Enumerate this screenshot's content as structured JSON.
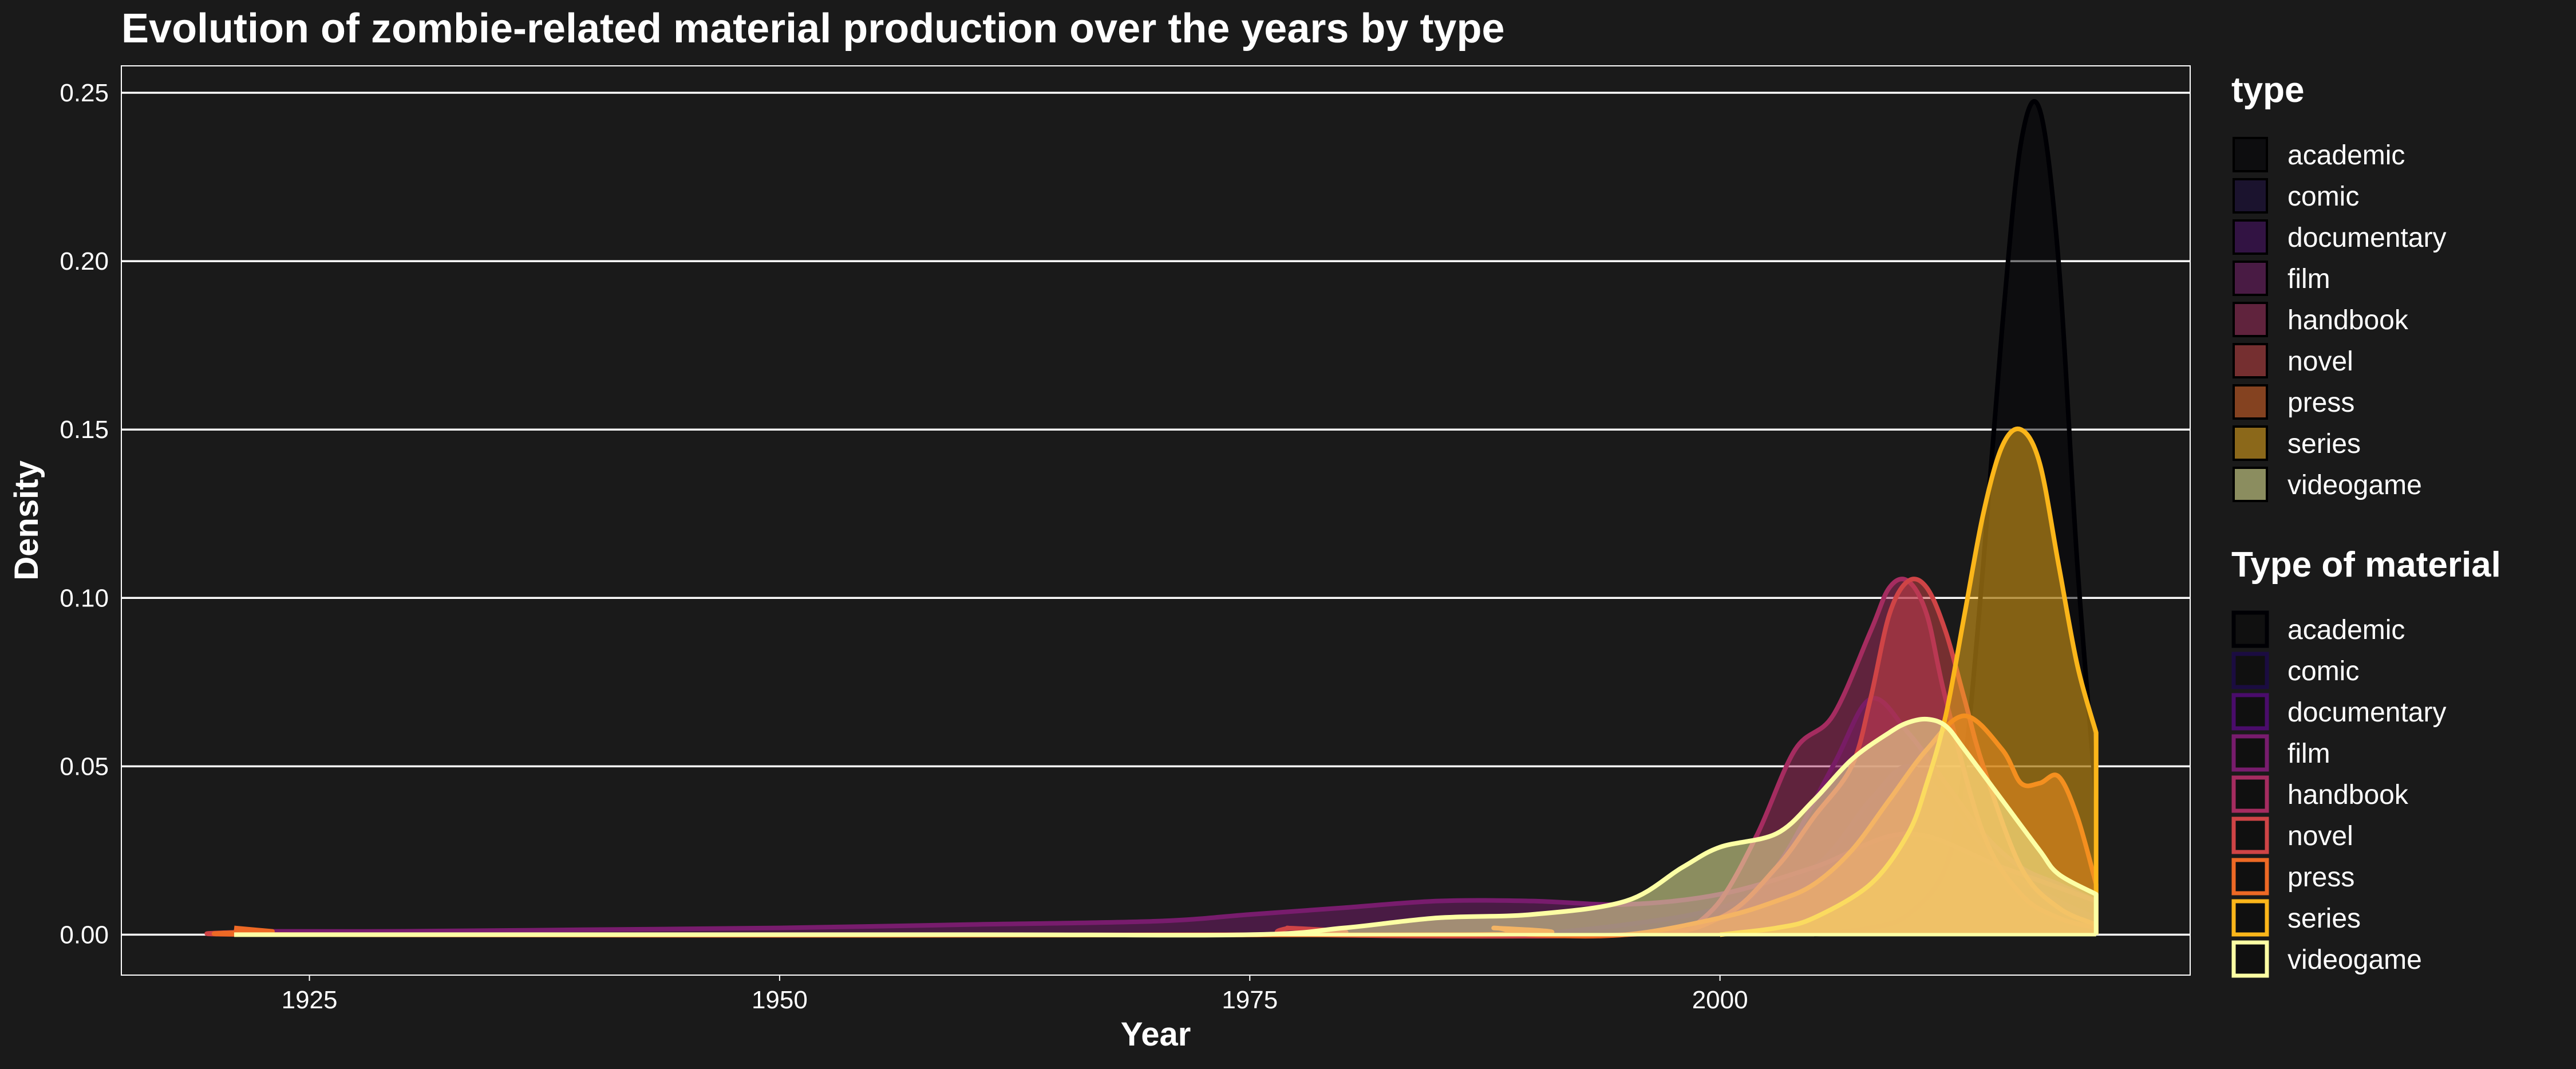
{
  "chart_data": {
    "type": "area",
    "title": "Evolution of zombie-related material production over the years by type",
    "xlabel": "Year",
    "ylabel": "Density",
    "xlim": [
      1915,
      2025
    ],
    "ylim": [
      -0.012,
      0.258
    ],
    "xticks": [
      1925,
      1950,
      1975,
      2000
    ],
    "yticks": [
      0.0,
      0.05,
      0.1,
      0.15,
      0.2,
      0.25
    ],
    "grid": "horizontal",
    "legends": [
      {
        "title": "type",
        "labels": [
          "academic",
          "comic",
          "documentary",
          "film",
          "handbook",
          "novel",
          "press",
          "series",
          "videogame"
        ]
      },
      {
        "title": "Type of material",
        "labels": [
          "academic",
          "comic",
          "documentary",
          "film",
          "handbook",
          "novel",
          "press",
          "series",
          "videogame"
        ]
      }
    ],
    "colors": {
      "background": "#1a1a1a",
      "grid": "#ffffff",
      "academic": "#000004",
      "comic": "#1b0c41",
      "documentary": "#4a0c6b",
      "film": "#781c6d",
      "handbook": "#a52c60",
      "novel": "#cf4446",
      "press": "#ed6925",
      "series": "#fbb61a",
      "videogame": "#fcffa4"
    },
    "series": [
      {
        "name": "academic",
        "x": [
          2005,
          2008,
          2010,
          2012,
          2013,
          2014,
          2015,
          2016,
          2017,
          2018,
          2019,
          2020
        ],
        "y": [
          0,
          0.002,
          0.006,
          0.02,
          0.05,
          0.11,
          0.18,
          0.235,
          0.245,
          0.2,
          0.11,
          0.04
        ]
      },
      {
        "name": "comic",
        "x": [
          1990,
          1995,
          2000,
          2005,
          2008,
          2010,
          2012,
          2015,
          2018,
          2020
        ],
        "y": [
          0,
          0.003,
          0.008,
          0.02,
          0.04,
          0.05,
          0.04,
          0.02,
          0.01,
          0.005
        ]
      },
      {
        "name": "documentary",
        "x": [
          1995,
          2000,
          2003,
          2006,
          2008,
          2010,
          2012,
          2014,
          2016,
          2018,
          2020
        ],
        "y": [
          0,
          0.005,
          0.02,
          0.05,
          0.07,
          0.06,
          0.045,
          0.03,
          0.02,
          0.015,
          0.01
        ]
      },
      {
        "name": "film",
        "x": [
          1921,
          1930,
          1940,
          1950,
          1960,
          1970,
          1975,
          1980,
          1985,
          1990,
          1995,
          2000,
          2005,
          2010,
          2015,
          2020
        ],
        "y": [
          0.001,
          0.001,
          0.0015,
          0.002,
          0.003,
          0.004,
          0.006,
          0.008,
          0.01,
          0.01,
          0.009,
          0.012,
          0.02,
          0.03,
          0.02,
          0.01
        ]
      },
      {
        "name": "handbook",
        "x": [
          1998,
          2000,
          2002,
          2004,
          2006,
          2008,
          2009,
          2010,
          2011,
          2012,
          2014,
          2016,
          2018,
          2020
        ],
        "y": [
          0,
          0.01,
          0.03,
          0.055,
          0.065,
          0.09,
          0.103,
          0.105,
          0.095,
          0.07,
          0.03,
          0.012,
          0.005,
          0.002
        ]
      },
      {
        "name": "novel",
        "x": [
          1921,
          1922,
          1924,
          1976,
          1977,
          1978,
          1995,
          2000,
          2003,
          2005,
          2007,
          2008,
          2009,
          2010,
          2011,
          2012,
          2013,
          2014,
          2016,
          2018,
          2020
        ],
        "y": [
          0.002,
          0.001,
          0,
          0,
          0.002,
          0,
          0,
          0.005,
          0.02,
          0.035,
          0.05,
          0.07,
          0.095,
          0.105,
          0.103,
          0.09,
          0.07,
          0.05,
          0.02,
          0.008,
          0.003
        ]
      },
      {
        "name": "press",
        "x": [
          1921,
          1923,
          1925,
          1986,
          1988,
          1990,
          1995,
          2000,
          2003,
          2005,
          2007,
          2009,
          2011,
          2013,
          2015,
          2016,
          2017,
          2018,
          2019,
          2020
        ],
        "y": [
          0.002,
          0.001,
          0,
          0,
          0.002,
          0,
          0,
          0.005,
          0.01,
          0.015,
          0.025,
          0.04,
          0.055,
          0.065,
          0.055,
          0.045,
          0.045,
          0.047,
          0.035,
          0.015
        ]
      },
      {
        "name": "series",
        "x": [
          2000,
          2003,
          2005,
          2008,
          2010,
          2011,
          2012,
          2013,
          2014,
          2015,
          2016,
          2017,
          2018,
          2019,
          2020
        ],
        "y": [
          0,
          0.002,
          0.005,
          0.015,
          0.03,
          0.045,
          0.065,
          0.095,
          0.125,
          0.145,
          0.15,
          0.14,
          0.11,
          0.08,
          0.06
        ]
      },
      {
        "name": "videogame",
        "x": [
          1921,
          1960,
          1975,
          1980,
          1985,
          1990,
          1995,
          1998,
          2000,
          2003,
          2005,
          2007,
          2009,
          2010,
          2011,
          2012,
          2013,
          2015,
          2017,
          2018,
          2020
        ],
        "y": [
          0,
          0,
          0,
          0.002,
          0.005,
          0.006,
          0.01,
          0.02,
          0.026,
          0.03,
          0.04,
          0.052,
          0.06,
          0.063,
          0.064,
          0.062,
          0.055,
          0.04,
          0.025,
          0.018,
          0.012
        ]
      }
    ]
  }
}
